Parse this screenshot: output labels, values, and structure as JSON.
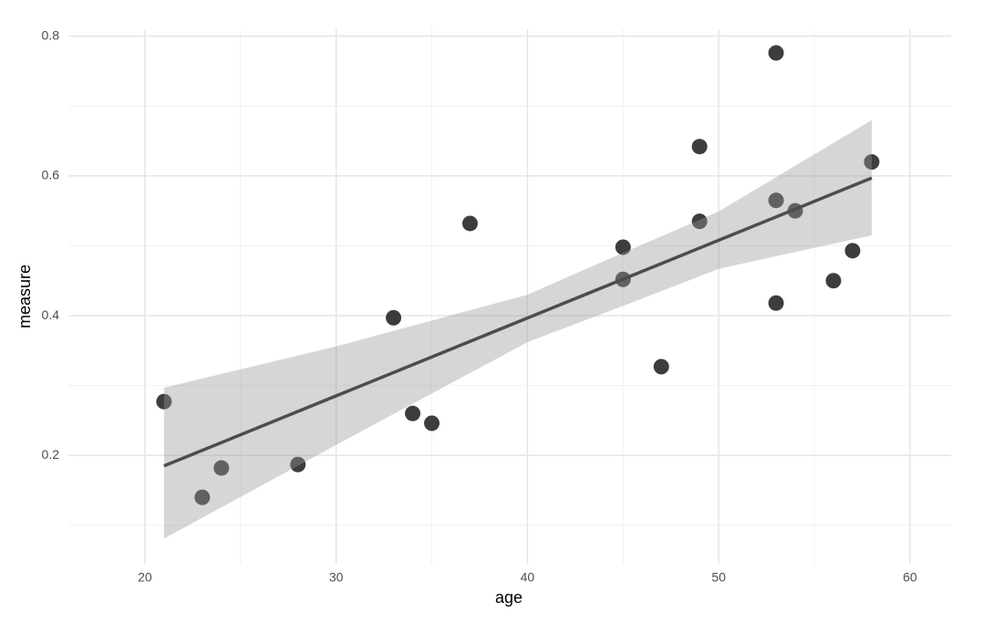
{
  "chart_data": {
    "type": "scatter",
    "x_label": "age",
    "y_label": "measure",
    "x": [
      21,
      23,
      24,
      28,
      33,
      34,
      35,
      37,
      45,
      45,
      47,
      49,
      49,
      53,
      53,
      53,
      54,
      56,
      57,
      58
    ],
    "values": [
      0.277,
      0.14,
      0.182,
      0.187,
      0.397,
      0.26,
      0.246,
      0.532,
      0.498,
      0.452,
      0.327,
      0.642,
      0.535,
      0.776,
      0.565,
      0.418,
      0.55,
      0.45,
      0.493,
      0.62
    ],
    "color": "#333333",
    "fit": {
      "x": [
        21,
        58
      ],
      "y": [
        0.185,
        0.597
      ],
      "color": "#4d4d4d"
    },
    "band": {
      "x": [
        21,
        30,
        40,
        45,
        50,
        58
      ],
      "lower": [
        0.081,
        0.215,
        0.362,
        0.414,
        0.467,
        0.515
      ],
      "upper": [
        0.297,
        0.356,
        0.43,
        0.49,
        0.549,
        0.68
      ],
      "color": "#999999"
    },
    "xlim": [
      16,
      62.15
    ],
    "ylim": [
      0.045,
      0.81
    ],
    "xticks": [
      20,
      30,
      40,
      50,
      60
    ],
    "yticks": [
      0.2,
      0.4,
      0.6,
      0.8
    ],
    "x_minor_ticks": [
      25,
      35,
      45,
      55
    ],
    "y_minor_ticks": [
      0.1,
      0.3,
      0.5,
      0.7
    ],
    "grid": true
  }
}
